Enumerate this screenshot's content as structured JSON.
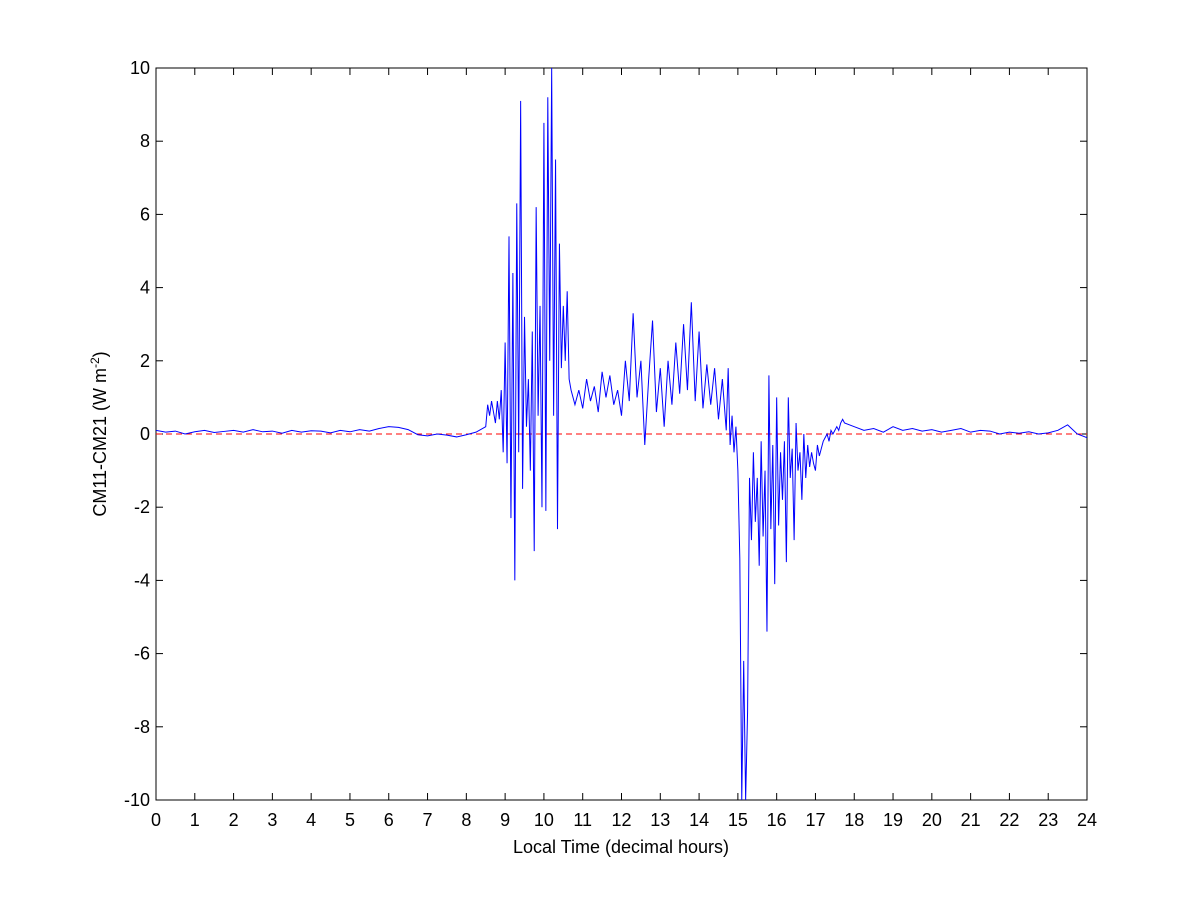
{
  "chart_data": {
    "type": "line",
    "xlabel": "Local Time (decimal hours)",
    "ylabel": [
      "CM11-CM21 (W m",
      "-2",
      ")"
    ],
    "xlim": [
      0,
      24
    ],
    "ylim": [
      -10,
      10
    ],
    "xticks": [
      0,
      1,
      2,
      3,
      4,
      5,
      6,
      7,
      8,
      9,
      10,
      11,
      12,
      13,
      14,
      15,
      16,
      17,
      18,
      19,
      20,
      21,
      22,
      23,
      24
    ],
    "yticks": [
      -10,
      -8,
      -6,
      -4,
      -2,
      0,
      2,
      4,
      6,
      8,
      10
    ],
    "hline": {
      "value": 0,
      "color": "#ff0000",
      "style": "dashed"
    },
    "x": [
      0,
      0.25,
      0.5,
      0.75,
      1,
      1.25,
      1.5,
      1.75,
      2,
      2.25,
      2.5,
      2.75,
      3,
      3.25,
      3.5,
      3.75,
      4,
      4.25,
      4.5,
      4.75,
      5,
      5.25,
      5.5,
      5.75,
      6,
      6.25,
      6.5,
      6.75,
      7,
      7.25,
      7.5,
      7.75,
      8,
      8.25,
      8.5,
      8.55,
      8.6,
      8.65,
      8.7,
      8.75,
      8.8,
      8.85,
      8.9,
      8.95,
      9,
      9.05,
      9.1,
      9.15,
      9.2,
      9.25,
      9.3,
      9.35,
      9.4,
      9.45,
      9.5,
      9.55,
      9.6,
      9.65,
      9.7,
      9.75,
      9.8,
      9.85,
      9.9,
      9.95,
      10,
      10.05,
      10.1,
      10.15,
      10.2,
      10.25,
      10.3,
      10.35,
      10.4,
      10.45,
      10.5,
      10.55,
      10.6,
      10.65,
      10.7,
      10.75,
      10.8,
      10.9,
      11,
      11.1,
      11.2,
      11.3,
      11.4,
      11.5,
      11.6,
      11.7,
      11.8,
      11.9,
      12,
      12.1,
      12.2,
      12.3,
      12.4,
      12.5,
      12.6,
      12.7,
      12.8,
      12.9,
      13,
      13.1,
      13.2,
      13.3,
      13.4,
      13.5,
      13.6,
      13.7,
      13.8,
      13.9,
      14,
      14.1,
      14.2,
      14.3,
      14.4,
      14.5,
      14.6,
      14.7,
      14.75,
      14.8,
      14.85,
      14.9,
      14.95,
      15,
      15.05,
      15.1,
      15.15,
      15.2,
      15.25,
      15.3,
      15.35,
      15.4,
      15.45,
      15.5,
      15.55,
      15.6,
      15.65,
      15.7,
      15.75,
      15.8,
      15.85,
      15.9,
      15.95,
      16,
      16.05,
      16.1,
      16.15,
      16.2,
      16.25,
      16.3,
      16.35,
      16.4,
      16.45,
      16.5,
      16.55,
      16.6,
      16.65,
      16.7,
      16.75,
      16.8,
      16.85,
      16.9,
      16.95,
      17,
      17.05,
      17.1,
      17.15,
      17.2,
      17.25,
      17.3,
      17.35,
      17.4,
      17.45,
      17.5,
      17.55,
      17.6,
      17.65,
      17.7,
      17.75,
      18,
      18.25,
      18.5,
      18.75,
      19,
      19.25,
      19.5,
      19.75,
      20,
      20.25,
      20.5,
      20.75,
      21,
      21.25,
      21.5,
      21.75,
      22,
      22.25,
      22.5,
      22.75,
      23,
      23.25,
      23.5,
      23.75,
      24
    ],
    "series": [
      {
        "color": "#0000ff",
        "values": [
          0.1,
          0.05,
          0.08,
          0,
          0.06,
          0.1,
          0.04,
          0.07,
          0.1,
          0.05,
          0.12,
          0.06,
          0.08,
          0.02,
          0.1,
          0.05,
          0.09,
          0.08,
          0.03,
          0.1,
          0.06,
          0.12,
          0.08,
          0.15,
          0.2,
          0.18,
          0.12,
          -0.02,
          -0.05,
          0,
          -0.03,
          -0.08,
          -0.02,
          0.05,
          0.2,
          0.8,
          0.5,
          0.9,
          0.6,
          0.3,
          0.9,
          0.4,
          1.2,
          -0.5,
          2.5,
          -0.8,
          5.4,
          -2.3,
          4.4,
          -4,
          6.3,
          -0.5,
          9.1,
          -1.5,
          3.2,
          0.2,
          1.5,
          -1,
          2.8,
          -3.2,
          6.2,
          0.5,
          3.5,
          -2,
          8.5,
          -2.1,
          9.2,
          2,
          10,
          0.5,
          7.5,
          -2.6,
          5.2,
          1.8,
          3.5,
          2,
          3.9,
          1.5,
          1.2,
          1,
          0.8,
          1.2,
          0.7,
          1.5,
          0.9,
          1.3,
          0.6,
          1.7,
          1,
          1.6,
          0.8,
          1.2,
          0.5,
          2,
          0.9,
          3.3,
          1,
          2,
          -0.3,
          1.5,
          3.1,
          0.6,
          1.8,
          0.2,
          2,
          0.8,
          2.5,
          1.1,
          3,
          1.2,
          3.6,
          0.9,
          2.8,
          0.7,
          1.9,
          0.8,
          1.8,
          0.4,
          1.5,
          0.1,
          1.8,
          -0.3,
          0.5,
          -0.5,
          0.2,
          -1,
          -3.4,
          -10,
          -6.2,
          -10,
          -7.6,
          -1.2,
          -2.9,
          -0.5,
          -2.4,
          -1.2,
          -3.6,
          -0.2,
          -2.8,
          -1,
          -5.4,
          1.6,
          -2.6,
          -0.3,
          -4.1,
          1,
          -2.5,
          -0.5,
          -1.8,
          -0.2,
          -3.5,
          1,
          -1.2,
          -0.4,
          -2.9,
          0.3,
          -1,
          -0.5,
          -1.8,
          0,
          -1.2,
          -0.3,
          -0.9,
          -0.5,
          -0.8,
          -1,
          -0.3,
          -0.6,
          -0.4,
          -0.2,
          -0.1,
          0,
          -0.2,
          0.1,
          0,
          0.1,
          0.2,
          0.1,
          0.3,
          0.4,
          0.3,
          0.2,
          0.1,
          0.15,
          0.05,
          0.2,
          0.1,
          0.15,
          0.08,
          0.12,
          0.05,
          0.1,
          0.15,
          0.05,
          0.1,
          0.08,
          0,
          0.05,
          0.02,
          0.06,
          0,
          0.03,
          0.1,
          0.25,
          0,
          -0.1
        ]
      }
    ]
  }
}
